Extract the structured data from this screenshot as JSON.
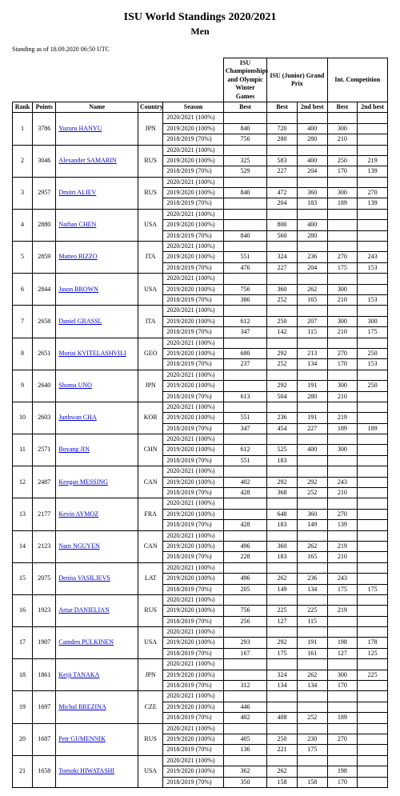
{
  "title": "ISU World Standings 2020/2021",
  "subtitle": "Men",
  "asof": "Standing as of 18.09.2020 06:50 UTC",
  "header_groups": [
    "ISU Championships and Olympic Winter Games",
    "ISU (Junior) Grand Prix",
    "Int. Competition"
  ],
  "columns": [
    "Rank",
    "Points",
    "Name",
    "Country",
    "Season",
    "Best",
    "Best",
    "2nd best",
    "Best",
    "2nd best"
  ],
  "seasons": [
    "2020/2021 (100%)",
    "2019/2020 (100%)",
    "2018/2019 (70%)"
  ],
  "rows": [
    {
      "rank": "1",
      "points": "3786",
      "name": "Yuzuru HANYU",
      "country": "JPN",
      "seasons": [
        [
          "",
          "",
          "",
          "",
          ""
        ],
        [
          "840",
          "720",
          "400",
          "300",
          ""
        ],
        [
          "756",
          "280",
          "280",
          "210",
          ""
        ]
      ]
    },
    {
      "rank": "2",
      "points": "3046",
      "name": "Alexander SAMARIN",
      "country": "RUS",
      "seasons": [
        [
          "",
          "",
          "",
          "",
          ""
        ],
        [
          "325",
          "583",
          "400",
          "250",
          "219"
        ],
        [
          "529",
          "227",
          "204",
          "170",
          "139"
        ]
      ]
    },
    {
      "rank": "3",
      "points": "2957",
      "name": "Dmitri ALIEV",
      "country": "RUS",
      "seasons": [
        [
          "",
          "",
          "",
          "",
          ""
        ],
        [
          "840",
          "472",
          "360",
          "300",
          "270"
        ],
        [
          "",
          "204",
          "183",
          "189",
          "139"
        ]
      ]
    },
    {
      "rank": "4",
      "points": "2880",
      "name": "Nathan CHEN",
      "country": "USA",
      "seasons": [
        [
          "",
          "",
          "",
          "",
          ""
        ],
        [
          "",
          "800",
          "400",
          "",
          ""
        ],
        [
          "840",
          "560",
          "280",
          "",
          ""
        ]
      ]
    },
    {
      "rank": "5",
      "points": "2859",
      "name": "Matteo RIZZO",
      "country": "ITA",
      "seasons": [
        [
          "",
          "",
          "",
          "",
          ""
        ],
        [
          "551",
          "324",
          "236",
          "270",
          "243"
        ],
        [
          "476",
          "227",
          "204",
          "175",
          "153"
        ]
      ]
    },
    {
      "rank": "6",
      "points": "2844",
      "name": "Jason BROWN",
      "country": "USA",
      "seasons": [
        [
          "",
          "",
          "",
          "",
          ""
        ],
        [
          "756",
          "360",
          "262",
          "300",
          ""
        ],
        [
          "386",
          "252",
          "165",
          "210",
          "153"
        ]
      ]
    },
    {
      "rank": "7",
      "points": "2658",
      "name": "Daniel GRASSL",
      "country": "ITA",
      "seasons": [
        [
          "",
          "",
          "",
          "",
          ""
        ],
        [
          "612",
          "250",
          "207",
          "300",
          "300"
        ],
        [
          "347",
          "142",
          "115",
          "210",
          "175"
        ]
      ]
    },
    {
      "rank": "8",
      "points": "2651",
      "name": "Morisi KVITELASHVILI",
      "country": "GEO",
      "seasons": [
        [
          "",
          "",
          "",
          "",
          ""
        ],
        [
          "680",
          "292",
          "213",
          "270",
          "250"
        ],
        [
          "237",
          "252",
          "134",
          "170",
          "153"
        ]
      ]
    },
    {
      "rank": "9",
      "points": "2640",
      "name": "Shoma UNO",
      "country": "JPN",
      "seasons": [
        [
          "",
          "",
          "",
          "",
          ""
        ],
        [
          "",
          "292",
          "191",
          "300",
          "250"
        ],
        [
          "613",
          "504",
          "280",
          "210",
          ""
        ]
      ]
    },
    {
      "rank": "10",
      "points": "2603",
      "name": "Junhwan CHA",
      "country": "KOR",
      "seasons": [
        [
          "",
          "",
          "",
          "",
          ""
        ],
        [
          "551",
          "236",
          "191",
          "219",
          ""
        ],
        [
          "347",
          "454",
          "227",
          "189",
          "189"
        ]
      ]
    },
    {
      "rank": "11",
      "points": "2571",
      "name": "Boyang JIN",
      "country": "CHN",
      "seasons": [
        [
          "",
          "",
          "",
          "",
          ""
        ],
        [
          "612",
          "525",
          "400",
          "300",
          ""
        ],
        [
          "551",
          "183",
          "",
          "",
          ""
        ]
      ]
    },
    {
      "rank": "12",
      "points": "2487",
      "name": "Keegan MESSING",
      "country": "CAN",
      "seasons": [
        [
          "",
          "",
          "",
          "",
          ""
        ],
        [
          "402",
          "292",
          "292",
          "243",
          ""
        ],
        [
          "428",
          "368",
          "252",
          "210",
          ""
        ]
      ]
    },
    {
      "rank": "13",
      "points": "2177",
      "name": "Kevin AYMOZ",
      "country": "FRA",
      "seasons": [
        [
          "",
          "",
          "",
          "",
          ""
        ],
        [
          "",
          "648",
          "360",
          "270",
          ""
        ],
        [
          "428",
          "183",
          "149",
          "139",
          ""
        ]
      ]
    },
    {
      "rank": "14",
      "points": "2123",
      "name": "Nam NGUYEN",
      "country": "CAN",
      "seasons": [
        [
          "",
          "",
          "",
          "",
          ""
        ],
        [
          "496",
          "360",
          "262",
          "219",
          ""
        ],
        [
          "228",
          "183",
          "165",
          "210",
          ""
        ]
      ]
    },
    {
      "rank": "15",
      "points": "2075",
      "name": "Deniss VASILJEVS",
      "country": "LAT",
      "seasons": [
        [
          "",
          "",
          "",
          "",
          ""
        ],
        [
          "496",
          "262",
          "236",
          "243",
          ""
        ],
        [
          "205",
          "149",
          "134",
          "175",
          "175"
        ]
      ]
    },
    {
      "rank": "16",
      "points": "1923",
      "name": "Artur DANIELIAN",
      "country": "RUS",
      "seasons": [
        [
          "",
          "",
          "",
          "",
          ""
        ],
        [
          "756",
          "225",
          "225",
          "219",
          ""
        ],
        [
          "256",
          "127",
          "115",
          "",
          ""
        ]
      ]
    },
    {
      "rank": "17",
      "points": "1907",
      "name": "Camden PULKINEN",
      "country": "USA",
      "seasons": [
        [
          "",
          "",
          "",
          "",
          ""
        ],
        [
          "293",
          "292",
          "191",
          "198",
          "178"
        ],
        [
          "167",
          "175",
          "161",
          "127",
          "125"
        ]
      ]
    },
    {
      "rank": "18",
      "points": "1861",
      "name": "Keiji TANAKA",
      "country": "JPN",
      "seasons": [
        [
          "",
          "",
          "",
          "",
          ""
        ],
        [
          "",
          "324",
          "262",
          "300",
          "225"
        ],
        [
          "312",
          "134",
          "134",
          "170",
          ""
        ]
      ]
    },
    {
      "rank": "19",
      "points": "1697",
      "name": "Michal BREZINA",
      "country": "CZE",
      "seasons": [
        [
          "",
          "",
          "",
          "",
          ""
        ],
        [
          "446",
          "",
          "",
          "",
          ""
        ],
        [
          "402",
          "408",
          "252",
          "189",
          ""
        ]
      ]
    },
    {
      "rank": "20",
      "points": "1687",
      "name": "Petr GUMENNIK",
      "country": "RUS",
      "seasons": [
        [
          "",
          "",
          "",
          "",
          ""
        ],
        [
          "405",
          "250",
          "230",
          "270",
          ""
        ],
        [
          "136",
          "221",
          "175",
          "",
          ""
        ]
      ]
    },
    {
      "rank": "21",
      "points": "1658",
      "name": "Tomoki HIWATASHI",
      "country": "USA",
      "seasons": [
        [
          "",
          "",
          "",
          "",
          ""
        ],
        [
          "362",
          "262",
          "",
          "198",
          ""
        ],
        [
          "350",
          "158",
          "158",
          "170",
          ""
        ]
      ]
    }
  ]
}
